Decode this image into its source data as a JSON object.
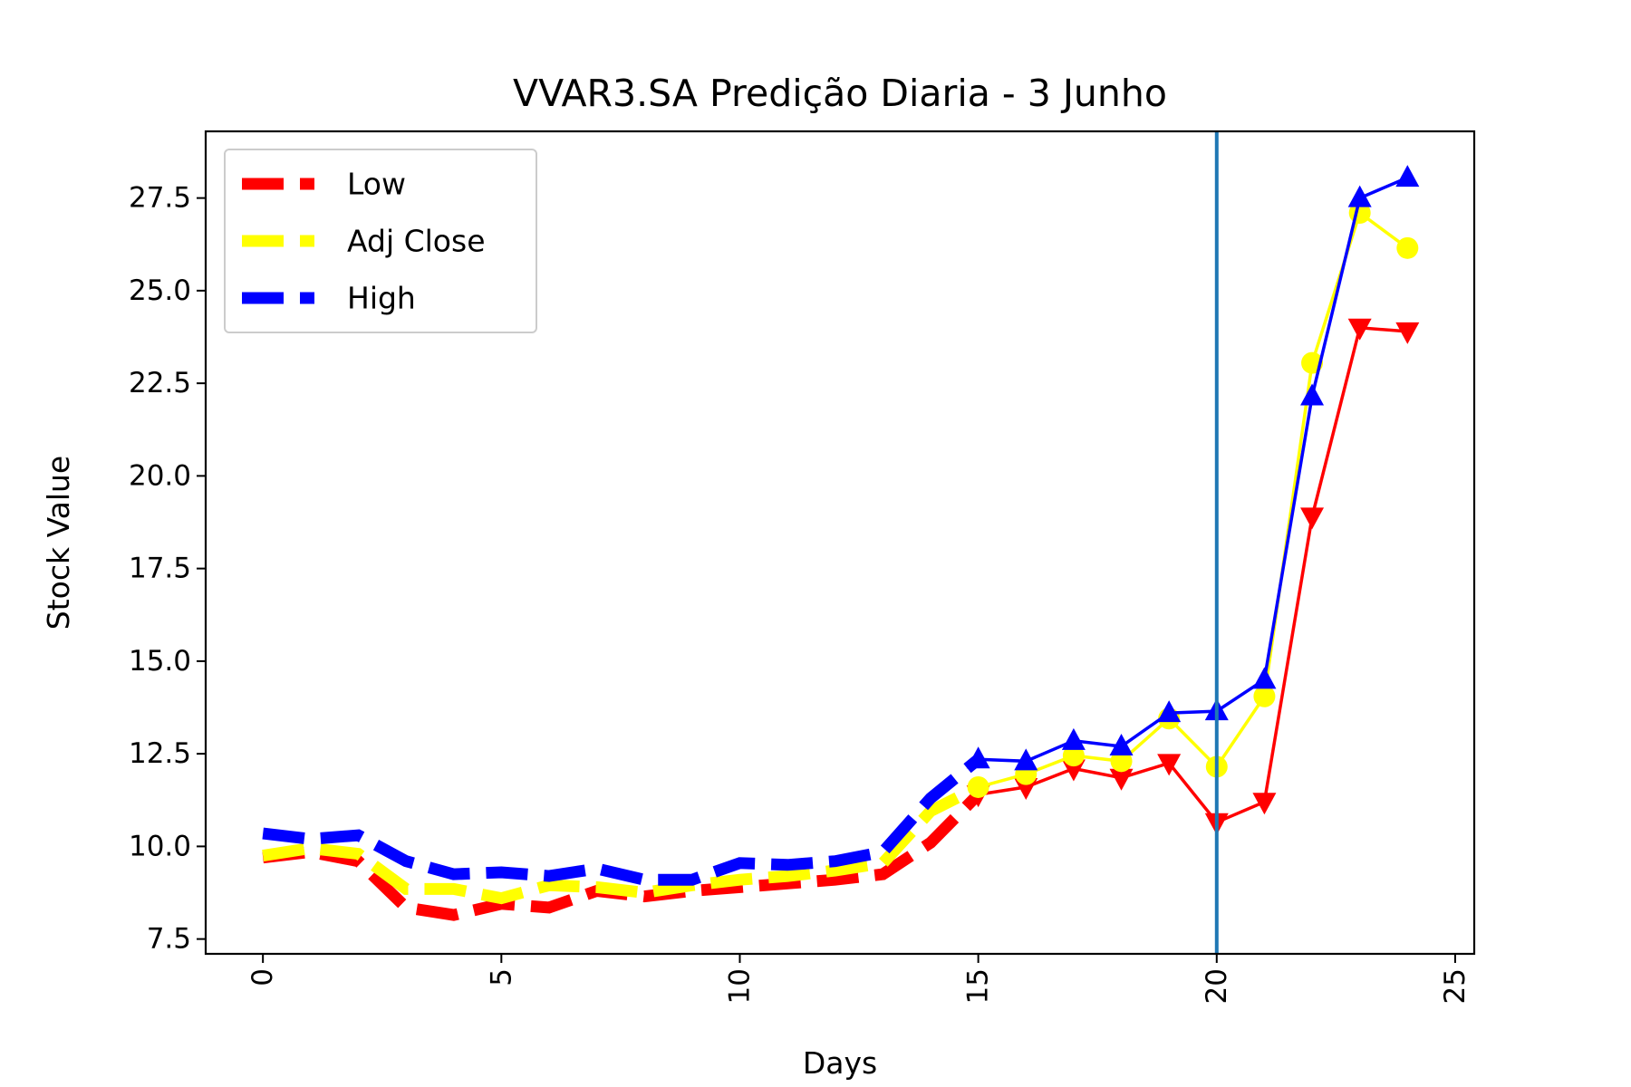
{
  "chart_data": {
    "type": "line",
    "title": "VVAR3.SA Predição Diaria - 3 Junho",
    "xlabel": "Days",
    "ylabel": "Stock Value",
    "xlim": [
      -1.2,
      25.4
    ],
    "ylim": [
      7.1,
      29.3
    ],
    "xticks": [
      0,
      5,
      10,
      15,
      20,
      25
    ],
    "xtick_labels": [
      "0",
      "5",
      "10",
      "15",
      "20",
      "25"
    ],
    "yticks": [
      7.5,
      10.0,
      12.5,
      15.0,
      17.5,
      20.0,
      22.5,
      25.0,
      27.5
    ],
    "ytick_labels": [
      "7.5",
      "10.0",
      "12.5",
      "15.0",
      "17.5",
      "20.0",
      "22.5",
      "25.0",
      "27.5"
    ],
    "xtick_rotation": 90,
    "grid": false,
    "legend_position": "upper-left",
    "vertical_line": {
      "x": 20,
      "color": "#1f77b4"
    },
    "history_days": [
      0,
      1,
      2,
      3,
      4,
      5,
      6,
      7,
      8,
      9,
      10,
      11,
      12,
      13,
      14,
      15
    ],
    "prediction_days": [
      15,
      16,
      17,
      18,
      19,
      20,
      21,
      22,
      23,
      24
    ],
    "series": [
      {
        "name": "Low",
        "color": "#ff0000",
        "marker": "triangle-down",
        "history": [
          9.7,
          9.85,
          9.6,
          8.35,
          8.15,
          8.45,
          8.35,
          8.8,
          8.65,
          8.8,
          8.9,
          9.0,
          9.1,
          9.25,
          10.1,
          11.4
        ],
        "prediction": [
          11.4,
          11.6,
          12.1,
          11.85,
          12.25,
          10.65,
          11.2,
          18.9,
          24.0,
          23.9
        ]
      },
      {
        "name": "Adj Close",
        "color": "#ffff00",
        "marker": "circle",
        "history": [
          9.75,
          9.95,
          9.8,
          8.85,
          8.85,
          8.6,
          8.95,
          8.9,
          8.75,
          8.95,
          9.1,
          9.2,
          9.35,
          9.55,
          10.95,
          11.6
        ],
        "prediction": [
          11.6,
          11.95,
          12.45,
          12.3,
          13.45,
          12.15,
          14.05,
          23.05,
          27.1,
          26.15
        ]
      },
      {
        "name": "High",
        "color": "#0000ff",
        "marker": "triangle-up",
        "history": [
          10.35,
          10.2,
          10.3,
          9.6,
          9.25,
          9.3,
          9.2,
          9.4,
          9.1,
          9.1,
          9.55,
          9.5,
          9.6,
          9.85,
          11.3,
          12.35
        ],
        "prediction": [
          12.35,
          12.3,
          12.85,
          12.7,
          13.6,
          13.65,
          14.5,
          22.15,
          27.5,
          28.05
        ]
      }
    ]
  }
}
